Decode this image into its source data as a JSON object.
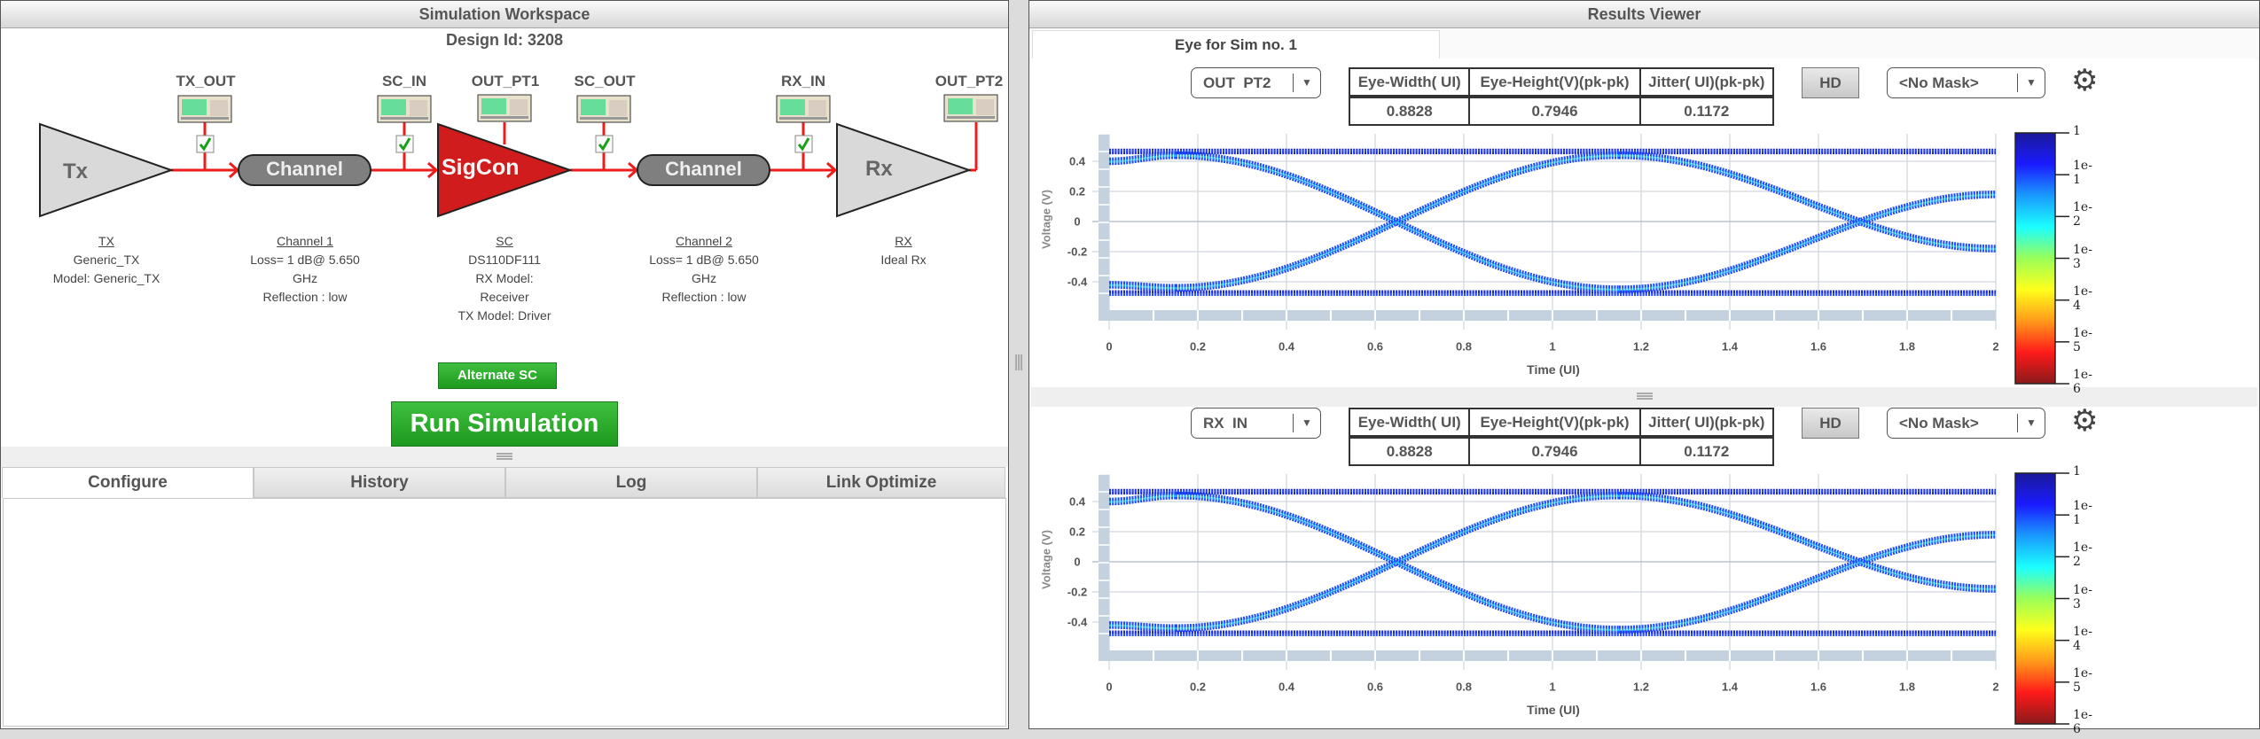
{
  "workspace": {
    "title": "Simulation Workspace",
    "design_id": "Design Id: 3208",
    "probes": [
      {
        "label": "TX_OUT",
        "checked": true
      },
      {
        "label": "SC_IN",
        "checked": true
      },
      {
        "label": "OUT_PT1",
        "checked": false
      },
      {
        "label": "SC_OUT",
        "checked": true
      },
      {
        "label": "RX_IN",
        "checked": true
      },
      {
        "label": "OUT_PT2",
        "checked": false
      }
    ],
    "blocks": {
      "tx": "Tx",
      "channel1": "Channel",
      "sigcon": "SigCon",
      "channel2": "Channel",
      "rx": "Rx"
    },
    "descriptions": [
      {
        "heading": "TX",
        "lines": [
          "Generic_TX",
          "Model: Generic_TX"
        ]
      },
      {
        "heading": "Channel 1",
        "lines": [
          "Loss= 1 dB@ 5.650",
          "GHz",
          "Reflection : low"
        ]
      },
      {
        "heading": "SC",
        "lines": [
          "DS110DF111",
          "RX Model:",
          "Receiver",
          "TX Model: Driver"
        ]
      },
      {
        "heading": "Channel 2",
        "lines": [
          "Loss= 1 dB@ 5.650",
          "GHz",
          "Reflection : low"
        ]
      },
      {
        "heading": "RX",
        "lines": [
          "Ideal Rx"
        ]
      }
    ],
    "alternate_sc_label": "Alternate SC",
    "run_simulation_label": "Run Simulation",
    "tabs": [
      {
        "label": "Configure",
        "active": true
      },
      {
        "label": "History",
        "active": false
      },
      {
        "label": "Log",
        "active": false
      },
      {
        "label": "Link Optimize",
        "active": false
      }
    ]
  },
  "results": {
    "title": "Results Viewer",
    "tab_label": "Eye for Sim no. 1",
    "plots": [
      {
        "probe": "OUT  PT2",
        "metrics_headers": [
          "Eye-Width( UI)",
          "Eye-Height(V)(pk-pk)",
          "Jitter( UI)(pk-pk)"
        ],
        "metrics_values": [
          "0.8828",
          "0.7946",
          "0.1172"
        ],
        "hd_label": "HD",
        "mask": "<No Mask>"
      },
      {
        "probe": "RX  IN",
        "metrics_headers": [
          "Eye-Width( UI)",
          "Eye-Height(V)(pk-pk)",
          "Jitter( UI)(pk-pk)"
        ],
        "metrics_values": [
          "0.8828",
          "0.7946",
          "0.1172"
        ],
        "hd_label": "HD",
        "mask": "<No Mask>"
      }
    ],
    "axis": {
      "xlabel": "Time (UI)",
      "ylabel": "Voltage (V)",
      "xticks": [
        "0",
        "0.2",
        "0.4",
        "0.6",
        "0.8",
        "1",
        "1.2",
        "1.4",
        "1.6",
        "1.8",
        "2"
      ],
      "yticks": [
        "0.4",
        "0.2",
        "0",
        "-0.2",
        "-0.4"
      ]
    },
    "colorbar": {
      "labels": [
        "1",
        "1e-1",
        "1e-2",
        "1e-3",
        "1e-4",
        "1e-5",
        "1e-6"
      ],
      "colors": [
        "#1a1a99",
        "#1a1aff",
        "#1a9aff",
        "#1affff",
        "#9aff5a",
        "#ffff1a",
        "#ff9a1a",
        "#ff1a1a",
        "#8b1a1a"
      ]
    }
  },
  "chart_data": [
    {
      "type": "scatter",
      "title": "OUT PT2 eye diagram",
      "xlabel": "Time (UI)",
      "ylabel": "Voltage (V)",
      "xlim": [
        0,
        2
      ],
      "ylim": [
        -0.6,
        0.55
      ],
      "xticks": [
        0,
        0.2,
        0.4,
        0.6,
        0.8,
        1,
        1.2,
        1.4,
        1.6,
        1.8,
        2
      ],
      "yticks": [
        -0.4,
        -0.2,
        0,
        0.2,
        0.4
      ],
      "grid": true,
      "eye_crossings_ui": [
        0.5,
        1.5
      ],
      "rail_high_v": 0.47,
      "rail_low_v": -0.48,
      "colorbar": {
        "scale": "log",
        "range": [
          1e-06,
          1
        ],
        "labels": [
          "1",
          "1e-1",
          "1e-2",
          "1e-3",
          "1e-4",
          "1e-5",
          "1e-6"
        ]
      },
      "metrics": {
        "eye_width_ui": 0.8828,
        "eye_height_v": 0.7946,
        "jitter_ui": 0.1172
      }
    },
    {
      "type": "scatter",
      "title": "RX IN eye diagram",
      "xlabel": "Time (UI)",
      "ylabel": "Voltage (V)",
      "xlim": [
        0,
        2
      ],
      "ylim": [
        -0.6,
        0.55
      ],
      "xticks": [
        0,
        0.2,
        0.4,
        0.6,
        0.8,
        1,
        1.2,
        1.4,
        1.6,
        1.8,
        2
      ],
      "yticks": [
        -0.4,
        -0.2,
        0,
        0.2,
        0.4
      ],
      "grid": true,
      "eye_crossings_ui": [
        0.5,
        1.5
      ],
      "rail_high_v": 0.47,
      "rail_low_v": -0.48,
      "colorbar": {
        "scale": "log",
        "range": [
          1e-06,
          1
        ],
        "labels": [
          "1",
          "1e-1",
          "1e-2",
          "1e-3",
          "1e-4",
          "1e-5",
          "1e-6"
        ]
      },
      "metrics": {
        "eye_width_ui": 0.8828,
        "eye_height_v": 0.7946,
        "jitter_ui": 0.1172
      }
    }
  ]
}
